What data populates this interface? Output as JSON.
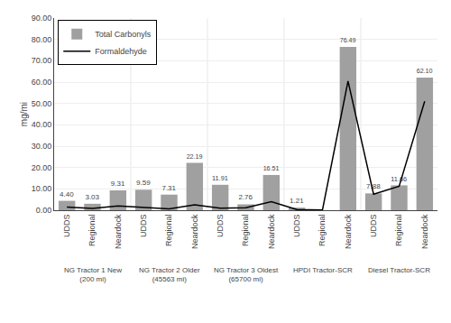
{
  "chart_data": {
    "type": "bar",
    "categories": [
      "UDDS",
      "Regional",
      "Neardock",
      "UDDS",
      "Regional",
      "Neardock",
      "UDDS",
      "Regional",
      "Neardock",
      "UDDS",
      "Regional",
      "Neardock",
      "UDDS",
      "Regional",
      "Neardock"
    ],
    "series": [
      {
        "name": "Total Carbonyls",
        "type": "bar",
        "color": "#a0a0a0",
        "values": [
          4.4,
          3.03,
          9.31,
          9.59,
          7.31,
          22.19,
          11.91,
          2.76,
          16.51,
          1.21,
          0.0,
          76.49,
          7.88,
          11.66,
          62.1
        ],
        "value_labels": [
          "4.40",
          "3.03",
          "9.31",
          "9.59",
          "7.31",
          "22.19",
          "11.91",
          "2.76",
          "16.51",
          "1.21",
          null,
          "76.49",
          "7.88",
          "11.66",
          "62.10"
        ]
      },
      {
        "name": "Formaldehyde",
        "type": "line",
        "color": "#000000",
        "values": [
          1.5,
          0.8,
          2.0,
          1.2,
          0.6,
          2.5,
          1.0,
          1.2,
          4.0,
          0.3,
          0.1,
          60.5,
          7.5,
          11.2,
          51.0
        ]
      }
    ],
    "ylabel": "mg/mi",
    "ylim": [
      0,
      90
    ],
    "yticks": [
      {
        "value": 0,
        "label": "0.00"
      },
      {
        "value": 10,
        "label": "10.00"
      },
      {
        "value": 20,
        "label": "20.00"
      },
      {
        "value": 30,
        "label": "30.00"
      },
      {
        "value": 40,
        "label": "40.00"
      },
      {
        "value": 50,
        "label": "50.00"
      },
      {
        "value": 60,
        "label": "60.00"
      },
      {
        "value": 70,
        "label": "70.00"
      },
      {
        "value": 80,
        "label": "80.00"
      },
      {
        "value": 90,
        "label": "90.00"
      }
    ],
    "grid": true,
    "legend": "upper left",
    "data_labels": true,
    "annotations": [
      "NG Tractor 1 New\n(200 mi)",
      "NG Tractor 2 Older\n(45563 mi)",
      "NG Tractor 3 Oldest\n(65700 mi)",
      "HPDI Tractor-SCR",
      "Diesel Tractor-SCR"
    ]
  }
}
